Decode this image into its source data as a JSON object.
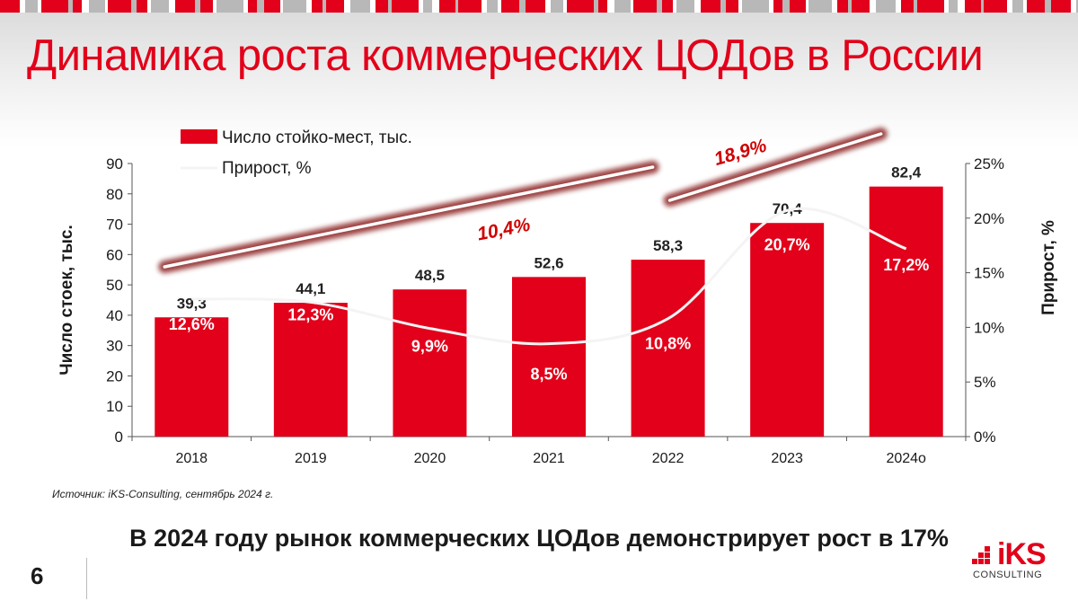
{
  "slide": {
    "title": "Динамика роста коммерческих ЦОДов в России",
    "source": "Источник: iKS-Consulting, сентябрь 2024 г.",
    "conclusion": "В 2024 году рынок коммерческих ЦОДов демонстрирует рост в 17%",
    "page_number": "6"
  },
  "logo": {
    "text": "iKS",
    "sub": "CONSULTING"
  },
  "colors": {
    "accent": "#e2001a",
    "text": "#1a1a1a",
    "axis": "#555555"
  },
  "chart_data": {
    "type": "bar",
    "categories": [
      "2018",
      "2019",
      "2020",
      "2021",
      "2022",
      "2023",
      "2024о"
    ],
    "series": [
      {
        "name": "Число стойко-мест, тыс.",
        "axis": "left",
        "values": [
          39.3,
          44.1,
          48.5,
          52.6,
          58.3,
          70.4,
          82.4
        ],
        "labels": [
          "39,3",
          "44,1",
          "48,5",
          "52,6",
          "58,3",
          "70,4",
          "82,4"
        ]
      },
      {
        "name": "Прирост, %",
        "type": "line",
        "axis": "right",
        "values": [
          12.6,
          12.3,
          9.9,
          8.5,
          10.8,
          20.7,
          17.2
        ],
        "labels": [
          "12,6%",
          "12,3%",
          "9,9%",
          "8,5%",
          "10,8%",
          "20,7%",
          "17,2%"
        ]
      }
    ],
    "ylabel": "Число стоек, тыс.",
    "y2label": "Прирост, %",
    "ylim": [
      0,
      90
    ],
    "yticks": [
      "0",
      "10",
      "20",
      "30",
      "40",
      "50",
      "60",
      "70",
      "80",
      "90"
    ],
    "y2lim": [
      0,
      25
    ],
    "y2ticks": [
      "0%",
      "5%",
      "10%",
      "15%",
      "20%",
      "25%"
    ],
    "legend": "top-left",
    "trends": [
      {
        "label": "10,4%",
        "from": "2018",
        "to": "2022",
        "cagr": 10.4
      },
      {
        "label": "18,9%",
        "from": "2022",
        "to": "2024о",
        "cagr": 18.9
      }
    ]
  }
}
